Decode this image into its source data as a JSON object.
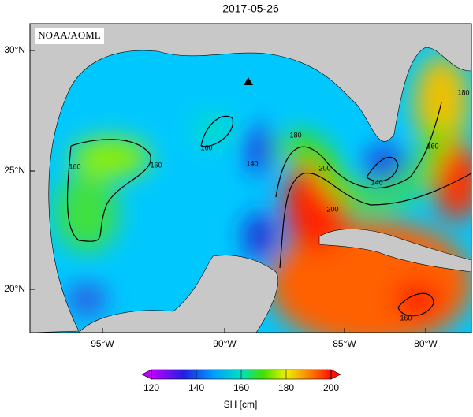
{
  "title": "2017-05-26",
  "credit": "NOAA/AOML",
  "lat_labels": [
    "30°N",
    "25°N",
    "20°N"
  ],
  "lon_labels": [
    "95°W",
    "90°W",
    "85°W",
    "80°W"
  ],
  "contour_labels": [
    "160",
    "160",
    "140",
    "160",
    "180",
    "200",
    "140",
    "160",
    "180",
    "200",
    "160"
  ],
  "colorbar": {
    "label": "SH [cm]",
    "range": [
      120,
      200
    ],
    "ticks": [
      120,
      140,
      160,
      180,
      200
    ]
  }
}
